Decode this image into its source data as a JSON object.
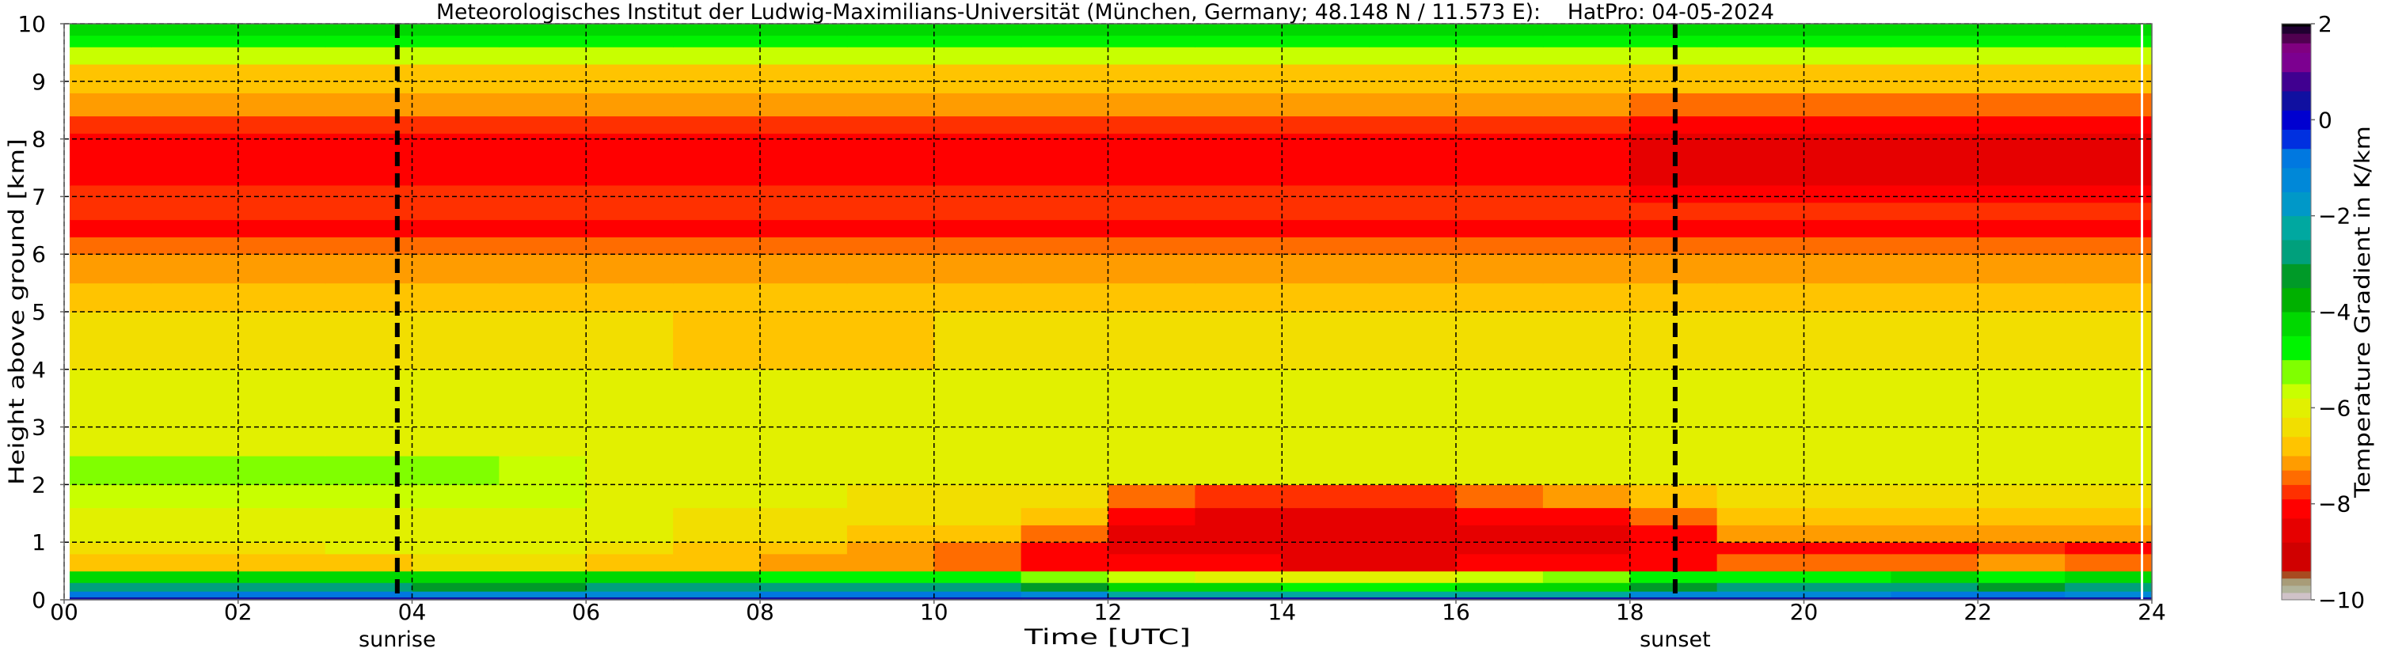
{
  "chart_data": {
    "type": "heatmap",
    "title": "Meteorologisches Institut der Ludwig-Maximilians-Universität (München, Germany; 48.148 N / 11.573 E):    HatPro: 04-05-2024",
    "xlabel": "Time [UTC]",
    "ylabel": "Height above ground [km]",
    "colorbar_label": "Temperature Gradient in K/km",
    "xlim": [
      0,
      24
    ],
    "ylim": [
      0,
      10
    ],
    "clim": [
      -10,
      2
    ],
    "grid": true,
    "x_ticks": [
      "00",
      "02",
      "04",
      "06",
      "08",
      "10",
      "12",
      "14",
      "16",
      "18",
      "20",
      "22",
      "24"
    ],
    "x_tick_values": [
      0,
      2,
      4,
      6,
      8,
      10,
      12,
      14,
      16,
      18,
      20,
      22,
      24
    ],
    "y_ticks": [
      "0",
      "1",
      "2",
      "3",
      "4",
      "5",
      "6",
      "7",
      "8",
      "9",
      "10"
    ],
    "colorbar_ticks": [
      "2",
      "0",
      "−2",
      "−4",
      "−6",
      "−8",
      "−10"
    ],
    "colorbar_tick_values": [
      2,
      0,
      -2,
      -4,
      -6,
      -8,
      -10
    ],
    "events": [
      {
        "label": "sunrise",
        "time": 3.83
      },
      {
        "label": "sunset",
        "time": 18.52
      }
    ],
    "time_bins_start_hour": [
      0,
      1,
      2,
      3,
      4,
      5,
      6,
      7,
      8,
      9,
      10,
      11,
      12,
      13,
      14,
      15,
      16,
      17,
      18,
      19,
      20,
      21,
      22,
      23
    ],
    "height_edges_km": [
      0,
      0.05,
      0.15,
      0.3,
      0.5,
      0.8,
      1.0,
      1.3,
      1.6,
      2.0,
      2.5,
      3.0,
      4.0,
      5.0,
      5.5,
      6.0,
      6.3,
      6.6,
      6.9,
      7.2,
      8.1,
      8.4,
      8.8,
      9.3,
      9.6,
      9.8,
      10
    ],
    "values": [
      [
        0.5,
        0.5,
        0.5,
        0.5,
        0.5,
        0.5,
        0.5,
        0.5,
        0.5,
        0.5,
        0.5,
        0.5,
        0.3,
        0.3,
        0.3,
        0.3,
        0.3,
        0.3,
        0.5,
        0.5,
        0.5,
        0.5,
        0.5,
        0.5
      ],
      [
        -1.0,
        -1.0,
        -1.0,
        -1.0,
        -1.2,
        -1.2,
        -1.2,
        -1.2,
        -1.0,
        -1.0,
        -1.0,
        -1.2,
        -2.5,
        -2.5,
        -2.5,
        -2.5,
        -2.5,
        -2.5,
        -1.5,
        -1.2,
        -1.2,
        -1.0,
        -1.0,
        -1.2
      ],
      [
        -3.0,
        -3.0,
        -3.0,
        -3.0,
        -3.2,
        -3.2,
        -3.0,
        -3.0,
        -3.0,
        -3.0,
        -3.0,
        -3.2,
        -4.5,
        -4.5,
        -4.6,
        -4.6,
        -4.5,
        -4.3,
        -3.5,
        -3.0,
        -3.0,
        -3.0,
        -3.2,
        -3.0
      ],
      [
        -4.3,
        -4.3,
        -4.3,
        -4.3,
        -4.2,
        -4.2,
        -4.3,
        -4.4,
        -5.0,
        -5.0,
        -5.0,
        -5.2,
        -5.8,
        -6.0,
        -6.0,
        -6.0,
        -5.8,
        -5.5,
        -4.6,
        -4.6,
        -4.6,
        -4.5,
        -4.6,
        -4.5
      ],
      [
        -6.8,
        -6.8,
        -6.8,
        -6.8,
        -6.6,
        -6.6,
        -6.8,
        -7.0,
        -7.2,
        -7.2,
        -7.4,
        -8.0,
        -8.3,
        -8.3,
        -8.4,
        -8.4,
        -8.3,
        -8.3,
        -8.0,
        -7.4,
        -7.4,
        -7.4,
        -7.3,
        -7.4
      ],
      [
        -6.3,
        -6.3,
        -6.3,
        -6.2,
        -6.2,
        -6.2,
        -6.3,
        -7.0,
        -7.0,
        -7.2,
        -7.4,
        -8.3,
        -8.5,
        -8.5,
        -8.6,
        -8.6,
        -8.5,
        -8.5,
        -8.3,
        -8.0,
        -8.0,
        -8.0,
        -7.9,
        -8.0
      ],
      [
        -6.1,
        -6.1,
        -6.1,
        -6.0,
        -6.0,
        -6.0,
        -6.1,
        -6.6,
        -6.6,
        -6.7,
        -6.8,
        -7.5,
        -8.5,
        -8.6,
        -8.6,
        -8.6,
        -8.5,
        -8.4,
        -8.0,
        -7.2,
        -7.2,
        -7.3,
        -7.2,
        -7.2
      ],
      [
        -6.0,
        -6.0,
        -6.0,
        -6.0,
        -5.9,
        -5.9,
        -6.0,
        -6.4,
        -6.4,
        -6.5,
        -6.6,
        -7.0,
        -8.2,
        -8.4,
        -8.4,
        -8.4,
        -8.2,
        -8.0,
        -7.5,
        -6.8,
        -6.8,
        -6.8,
        -6.7,
        -6.8
      ],
      [
        -5.8,
        -5.7,
        -5.8,
        -5.8,
        -5.8,
        -5.8,
        -6.2,
        -6.2,
        -6.2,
        -6.3,
        -6.4,
        -6.5,
        -7.6,
        -7.8,
        -7.8,
        -7.8,
        -7.6,
        -7.3,
        -7.0,
        -6.5,
        -6.5,
        -6.5,
        -6.4,
        -6.5
      ],
      [
        -5.4,
        -5.3,
        -5.4,
        -5.5,
        -5.5,
        -5.6,
        -6.0,
        -6.0,
        -6.0,
        -6.0,
        -6.0,
        -6.0,
        -6.1,
        -6.1,
        -6.1,
        -6.1,
        -6.0,
        -6.0,
        -6.0,
        -6.0,
        -6.0,
        -6.0,
        -6.0,
        -6.0
      ],
      [
        -5.9,
        -5.9,
        -5.9,
        -5.9,
        -5.9,
        -5.9,
        -5.9,
        -5.9,
        -5.9,
        -5.9,
        -5.9,
        -5.9,
        -5.9,
        -5.9,
        -5.9,
        -5.9,
        -5.9,
        -5.9,
        -5.9,
        -5.9,
        -5.9,
        -5.9,
        -5.9,
        -5.9
      ],
      [
        -6.1,
        -6.1,
        -6.1,
        -6.1,
        -6.1,
        -6.1,
        -6.1,
        -6.1,
        -6.2,
        -6.2,
        -6.1,
        -6.1,
        -6.1,
        -6.1,
        -6.1,
        -6.1,
        -6.1,
        -6.1,
        -6.1,
        -6.1,
        -6.1,
        -6.1,
        -6.1,
        -6.1
      ],
      [
        -6.6,
        -6.6,
        -6.6,
        -6.6,
        -6.6,
        -6.6,
        -6.6,
        -6.7,
        -6.7,
        -6.7,
        -6.6,
        -6.6,
        -6.6,
        -6.6,
        -6.6,
        -6.6,
        -6.6,
        -6.6,
        -6.6,
        -6.6,
        -6.6,
        -6.6,
        -6.6,
        -6.6
      ],
      [
        -6.9,
        -6.9,
        -6.9,
        -6.9,
        -6.9,
        -6.9,
        -6.9,
        -7.0,
        -7.0,
        -7.0,
        -6.9,
        -6.9,
        -6.9,
        -6.9,
        -6.9,
        -6.9,
        -6.9,
        -6.9,
        -6.9,
        -7.0,
        -7.0,
        -7.0,
        -7.0,
        -7.0
      ],
      [
        -7.2,
        -7.2,
        -7.2,
        -7.2,
        -7.2,
        -7.2,
        -7.2,
        -7.3,
        -7.3,
        -7.3,
        -7.2,
        -7.2,
        -7.2,
        -7.2,
        -7.2,
        -7.2,
        -7.2,
        -7.2,
        -7.2,
        -7.3,
        -7.3,
        -7.3,
        -7.3,
        -7.3
      ],
      [
        -7.6,
        -7.6,
        -7.6,
        -7.6,
        -7.6,
        -7.6,
        -7.6,
        -7.6,
        -7.6,
        -7.6,
        -7.6,
        -7.6,
        -7.6,
        -7.6,
        -7.6,
        -7.6,
        -7.6,
        -7.6,
        -7.6,
        -7.6,
        -7.6,
        -7.6,
        -7.6,
        -7.6
      ],
      [
        -8.1,
        -8.1,
        -8.1,
        -8.1,
        -8.1,
        -8.1,
        -8.1,
        -8.1,
        -8.1,
        -8.1,
        -8.1,
        -8.1,
        -8.1,
        -8.1,
        -8.1,
        -8.1,
        -8.1,
        -8.1,
        -8.1,
        -8.1,
        -8.1,
        -8.1,
        -8.1,
        -8.1
      ],
      [
        -7.7,
        -7.7,
        -7.7,
        -7.7,
        -7.7,
        -7.7,
        -7.7,
        -7.7,
        -7.7,
        -7.7,
        -7.7,
        -7.7,
        -7.7,
        -7.7,
        -7.7,
        -7.7,
        -7.7,
        -7.7,
        -7.7,
        -7.7,
        -7.7,
        -7.7,
        -7.7,
        -7.7
      ],
      [
        -7.9,
        -7.9,
        -7.9,
        -7.9,
        -7.9,
        -7.9,
        -7.9,
        -7.9,
        -7.9,
        -7.9,
        -7.9,
        -7.9,
        -7.9,
        -7.9,
        -7.9,
        -7.9,
        -7.9,
        -7.9,
        -8.0,
        -8.0,
        -8.0,
        -8.0,
        -8.0,
        -8.0
      ],
      [
        -8.0,
        -8.0,
        -8.0,
        -8.0,
        -8.0,
        -8.0,
        -8.0,
        -8.0,
        -8.0,
        -8.0,
        -8.2,
        -8.2,
        -8.2,
        -8.2,
        -8.2,
        -8.2,
        -8.2,
        -8.2,
        -8.5,
        -8.5,
        -8.5,
        -8.5,
        -8.5,
        -8.5
      ],
      [
        -7.7,
        -7.7,
        -7.7,
        -7.7,
        -7.7,
        -7.7,
        -7.7,
        -7.7,
        -7.7,
        -7.7,
        -7.7,
        -7.7,
        -7.7,
        -7.7,
        -7.7,
        -7.7,
        -7.7,
        -7.7,
        -8.2,
        -8.2,
        -8.2,
        -8.2,
        -8.2,
        -8.2
      ],
      [
        -7.3,
        -7.3,
        -7.3,
        -7.3,
        -7.3,
        -7.3,
        -7.3,
        -7.3,
        -7.3,
        -7.3,
        -7.3,
        -7.3,
        -7.3,
        -7.3,
        -7.3,
        -7.3,
        -7.3,
        -7.3,
        -7.6,
        -7.6,
        -7.6,
        -7.6,
        -7.6,
        -7.6
      ],
      [
        -6.9,
        -6.9,
        -6.9,
        -6.9,
        -6.9,
        -6.9,
        -6.9,
        -6.9,
        -6.9,
        -6.9,
        -6.9,
        -6.9,
        -6.9,
        -6.9,
        -6.9,
        -6.9,
        -6.9,
        -6.9,
        -7.0,
        -7.0,
        -7.0,
        -7.0,
        -7.0,
        -7.0
      ],
      [
        -5.7,
        -5.7,
        -5.7,
        -5.7,
        -5.7,
        -5.7,
        -5.7,
        -5.7,
        -5.7,
        -5.7,
        -5.7,
        -5.7,
        -5.7,
        -5.7,
        -5.7,
        -5.7,
        -5.7,
        -5.7,
        -5.8,
        -5.8,
        -5.8,
        -5.8,
        -5.8,
        -5.8
      ],
      [
        -5.0,
        -5.0,
        -5.0,
        -5.0,
        -5.0,
        -5.0,
        -5.0,
        -5.0,
        -5.0,
        -5.0,
        -5.0,
        -5.0,
        -5.0,
        -5.0,
        -5.0,
        -5.0,
        -5.0,
        -5.0,
        -5.0,
        -5.0,
        -5.0,
        -5.0,
        -5.0,
        -5.0
      ],
      [
        -4.3,
        -4.3,
        -4.3,
        -4.3,
        -4.3,
        -4.3,
        -4.3,
        -4.3,
        -4.3,
        -4.3,
        -4.3,
        -4.3,
        -4.3,
        -4.3,
        -4.3,
        -4.3,
        -4.3,
        -4.3,
        -4.3,
        -4.3,
        -4.3,
        -4.3,
        -4.3,
        -4.3
      ]
    ],
    "colormap": [
      [
        -10,
        "#cfc2c8"
      ],
      [
        -9.85,
        "#b2b49c"
      ],
      [
        -9.7,
        "#a89c78"
      ],
      [
        -9.55,
        "#a84a20"
      ],
      [
        -9.4,
        "#d00000"
      ],
      [
        -8.8,
        "#e60000"
      ],
      [
        -8.3,
        "#ff0000"
      ],
      [
        -7.9,
        "#ff3000"
      ],
      [
        -7.6,
        "#ff6c00"
      ],
      [
        -7.3,
        "#ff9c00"
      ],
      [
        -7.0,
        "#ffc400"
      ],
      [
        -6.6,
        "#f2de00"
      ],
      [
        -6.2,
        "#e2f000"
      ],
      [
        -5.8,
        "#c8ff00"
      ],
      [
        -5.5,
        "#80ff00"
      ],
      [
        -5.0,
        "#00f400"
      ],
      [
        -4.5,
        "#00d800"
      ],
      [
        -4.0,
        "#00b000"
      ],
      [
        -3.5,
        "#009a28"
      ],
      [
        -3.0,
        "#00a07c"
      ],
      [
        -2.5,
        "#00a8a0"
      ],
      [
        -2.0,
        "#0098c8"
      ],
      [
        -1.5,
        "#0088d8"
      ],
      [
        -1.0,
        "#0078e0"
      ],
      [
        -0.6,
        "#0030e0"
      ],
      [
        -0.2,
        "#0000d0"
      ],
      [
        0.2,
        "#1010a0"
      ],
      [
        0.6,
        "#400090"
      ],
      [
        1.0,
        "#7c0090"
      ],
      [
        1.4,
        "#800080"
      ],
      [
        1.6,
        "#500050"
      ],
      [
        1.8,
        "#200030"
      ],
      [
        1.95,
        "#000000"
      ]
    ]
  }
}
